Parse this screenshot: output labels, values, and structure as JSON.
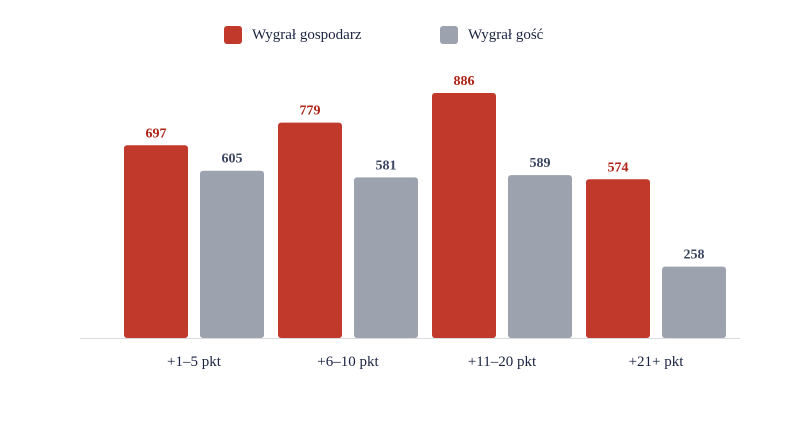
{
  "chart_data": {
    "type": "bar",
    "categories": [
      "+1–5 pkt",
      "+6–10 pkt",
      "+11–20 pkt",
      "+21+ pkt"
    ],
    "series": [
      {
        "name": "Wygrał gospodarz",
        "values": [
          697,
          779,
          886,
          574
        ],
        "color": "#c0392b"
      },
      {
        "name": "Wygrał gość",
        "values": [
          605,
          581,
          589,
          258
        ],
        "color": "#9ca3af"
      }
    ],
    "ylim": [
      0,
      886
    ],
    "grid": false,
    "legend_position": "top-center",
    "label_colors": {
      "home": "#b02418",
      "away": "#3b4660"
    }
  },
  "legend": {
    "home_label": "Wygrał gospodarz",
    "away_label": "Wygrał gość"
  }
}
